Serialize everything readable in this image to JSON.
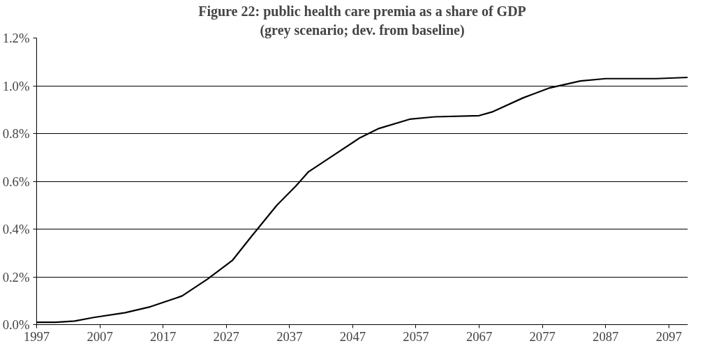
{
  "chart_data": {
    "type": "line",
    "title": "Figure 22: public health care premia as a share of GDP",
    "subtitle": "(grey scenario; dev. from baseline)",
    "x": [
      1997,
      2000,
      2003,
      2006,
      2011,
      2015,
      2020,
      2024,
      2028,
      2031,
      2035,
      2038,
      2040,
      2044,
      2048,
      2051,
      2056,
      2060,
      2067,
      2069,
      2074,
      2078,
      2083,
      2087,
      2095,
      2100
    ],
    "series": [
      {
        "color": "#000000",
        "values": [
          0.01,
          0.01,
          0.015,
          0.03,
          0.05,
          0.075,
          0.12,
          0.19,
          0.27,
          0.37,
          0.5,
          0.58,
          0.64,
          0.71,
          0.78,
          0.82,
          0.86,
          0.87,
          0.875,
          0.89,
          0.95,
          0.99,
          1.02,
          1.03,
          1.03,
          1.035
        ]
      }
    ],
    "xlim": [
      1997,
      2100
    ],
    "xticks": [
      1997,
      2007,
      2017,
      2027,
      2037,
      2047,
      2057,
      2067,
      2077,
      2087,
      2097
    ],
    "ylim": [
      0,
      1.2
    ],
    "yticks": [
      {
        "value": 0,
        "label": "0.0%"
      },
      {
        "value": 0.2,
        "label": "0.2%"
      },
      {
        "value": 0.4,
        "label": "0.4%"
      },
      {
        "value": 0.6,
        "label": "0.6%"
      },
      {
        "value": 0.8,
        "label": "0.8%"
      },
      {
        "value": 1.0,
        "label": "1.0%"
      },
      {
        "value": 1.2,
        "label": "1.2%"
      }
    ],
    "grid": "y",
    "marker": "none",
    "line_style": "solid"
  }
}
